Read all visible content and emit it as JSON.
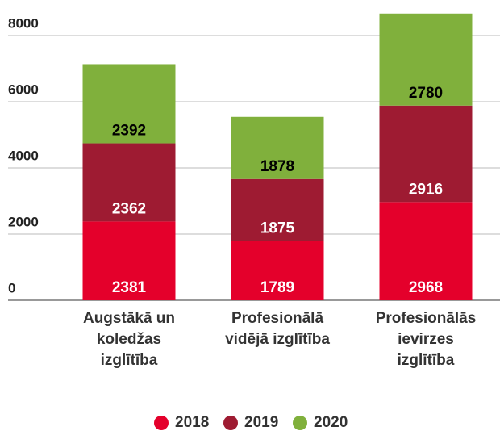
{
  "chart_data": {
    "type": "stacked_bar",
    "categories": [
      "Augstākā un\nkoledžas\nizglītība",
      "Profesionālā\nvidējā izglītība",
      "Profesionālās\nievirzes\nizglītība"
    ],
    "series": [
      {
        "name": "2018",
        "color": "#e4002b",
        "label_color": "#ffffff",
        "values": [
          2381,
          1789,
          2968
        ]
      },
      {
        "name": "2019",
        "color": "#9e1b32",
        "label_color": "#ffffff",
        "values": [
          2362,
          1875,
          2916
        ]
      },
      {
        "name": "2020",
        "color": "#80b03c",
        "label_color": "#000000",
        "values": [
          2392,
          1878,
          2780
        ]
      }
    ],
    "ylim": [
      0,
      9000
    ],
    "yticks": [
      0,
      2000,
      4000,
      6000,
      8000
    ],
    "grid": true,
    "legend": "bottom"
  }
}
